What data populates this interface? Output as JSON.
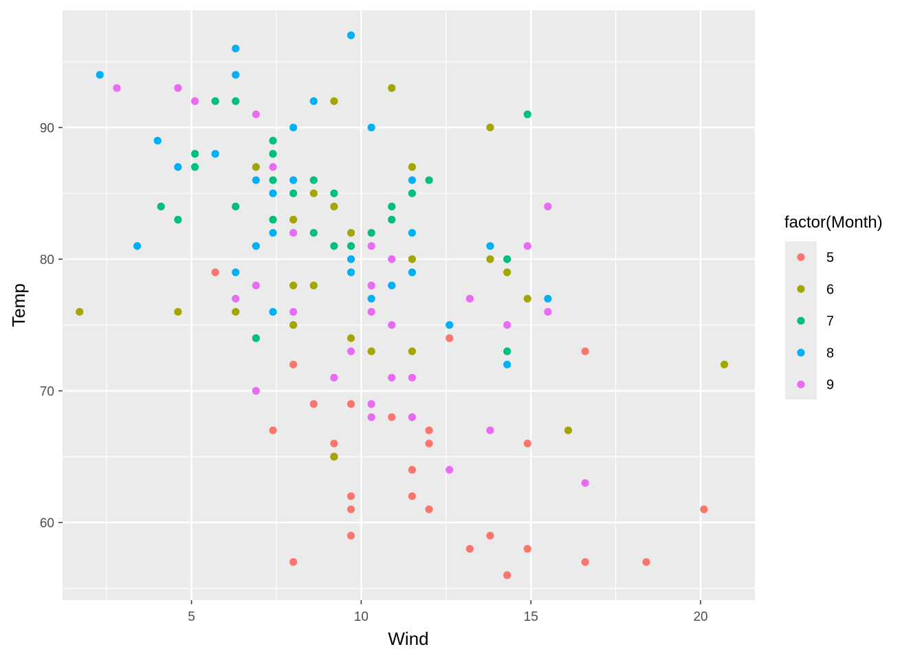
{
  "chart_data": {
    "type": "scatter",
    "xlabel": "Wind",
    "ylabel": "Temp",
    "xlim": [
      1.2,
      21.6
    ],
    "ylim": [
      54.1,
      98.9
    ],
    "x_ticks": [
      5,
      10,
      15,
      20
    ],
    "x_tick_labels": [
      "5",
      "10",
      "15",
      "20"
    ],
    "y_ticks": [
      60,
      70,
      80,
      90
    ],
    "y_tick_labels": [
      "60",
      "70",
      "80",
      "90"
    ],
    "x_minor_ticks": [
      2.5,
      7.5,
      12.5,
      17.5
    ],
    "y_minor_ticks": [
      55,
      65,
      75,
      85,
      95
    ],
    "grid": true,
    "legend_title": "factor(Month)",
    "legend_position": "right",
    "series": [
      {
        "name": "5",
        "color": "#F8766D",
        "x": [
          5.7,
          7.4,
          8.0,
          8.0,
          8.6,
          9.2,
          9.2,
          9.7,
          9.7,
          9.7,
          9.7,
          10.9,
          11.5,
          11.5,
          11.5,
          12.0,
          12.0,
          12.0,
          12.6,
          13.2,
          13.8,
          14.3,
          14.9,
          14.9,
          16.6,
          16.6,
          18.4,
          20.1
        ],
        "y": [
          79,
          67,
          72,
          57,
          69,
          66,
          65,
          69,
          62,
          61,
          59,
          68,
          68,
          64,
          62,
          67,
          66,
          61,
          74,
          58,
          59,
          56,
          66,
          58,
          73,
          57,
          57,
          61
        ]
      },
      {
        "name": "6",
        "color": "#A3A500",
        "x": [
          1.7,
          4.6,
          6.3,
          6.9,
          8.0,
          8.0,
          8.0,
          8.6,
          8.6,
          9.2,
          9.2,
          9.2,
          9.7,
          9.7,
          10.3,
          10.9,
          11.5,
          11.5,
          11.5,
          13.8,
          13.8,
          14.3,
          14.9,
          16.1,
          20.7
        ],
        "y": [
          76,
          76,
          76,
          87,
          83,
          78,
          75,
          85,
          78,
          92,
          84,
          65,
          82,
          74,
          73,
          93,
          87,
          80,
          73,
          90,
          80,
          79,
          77,
          67,
          72
        ]
      },
      {
        "name": "7",
        "color": "#00BF7D",
        "x": [
          4.1,
          4.6,
          5.1,
          5.1,
          5.7,
          6.3,
          6.3,
          6.9,
          7.4,
          7.4,
          7.4,
          7.4,
          8.0,
          8.6,
          8.6,
          9.2,
          9.2,
          9.7,
          10.3,
          10.9,
          10.9,
          11.5,
          12.0,
          14.3,
          14.3,
          14.9
        ],
        "y": [
          84,
          83,
          88,
          87,
          92,
          92,
          84,
          74,
          89,
          88,
          86,
          83,
          85,
          86,
          82,
          85,
          81,
          81,
          82,
          84,
          83,
          85,
          86,
          80,
          73,
          91
        ]
      },
      {
        "name": "8",
        "color": "#00B0F6",
        "x": [
          2.3,
          3.4,
          4.0,
          4.6,
          5.7,
          6.3,
          6.3,
          6.3,
          6.9,
          6.9,
          7.4,
          7.4,
          7.4,
          8.0,
          8.0,
          8.6,
          9.7,
          9.7,
          9.7,
          10.3,
          10.3,
          10.9,
          11.5,
          11.5,
          11.5,
          12.6,
          13.8,
          14.3,
          15.5
        ],
        "y": [
          94,
          81,
          89,
          87,
          88,
          96,
          94,
          79,
          86,
          81,
          85,
          82,
          76,
          90,
          86,
          92,
          97,
          80,
          79,
          90,
          77,
          78,
          86,
          82,
          79,
          75,
          81,
          72,
          77
        ]
      },
      {
        "name": "9",
        "color": "#E76BF3",
        "x": [
          2.8,
          4.6,
          5.1,
          6.3,
          6.9,
          6.9,
          6.9,
          7.4,
          8.0,
          8.0,
          9.2,
          9.7,
          10.3,
          10.3,
          10.3,
          10.3,
          10.3,
          10.9,
          10.9,
          10.9,
          11.5,
          11.5,
          12.6,
          13.2,
          13.8,
          14.3,
          14.9,
          15.5,
          15.5,
          16.6
        ],
        "y": [
          93,
          93,
          92,
          77,
          91,
          78,
          70,
          87,
          82,
          76,
          71,
          73,
          81,
          78,
          76,
          69,
          68,
          80,
          75,
          71,
          71,
          68,
          64,
          77,
          67,
          75,
          81,
          84,
          76,
          63
        ]
      }
    ]
  }
}
